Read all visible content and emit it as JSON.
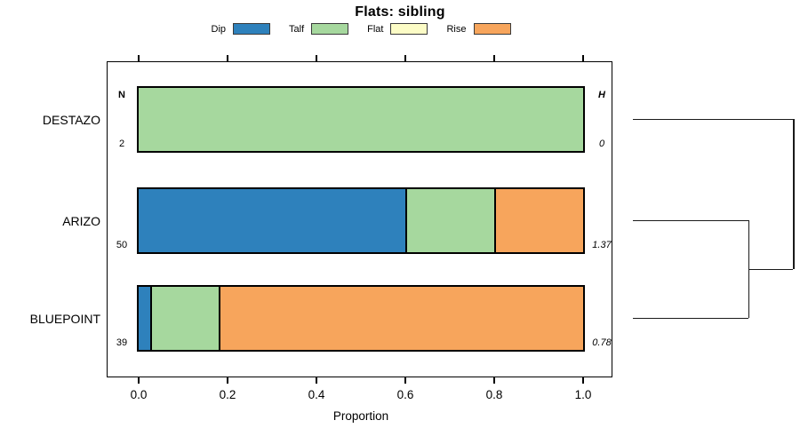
{
  "chart_data": {
    "type": "bar",
    "orientation": "horizontal",
    "stacked": true,
    "title": "Flats: sibling",
    "xlabel": "Proportion",
    "xlim": [
      0,
      1
    ],
    "xticks": [
      "0.0",
      "0.2",
      "0.4",
      "0.6",
      "0.8",
      "1.0"
    ],
    "grid": false,
    "legend_position": "top",
    "categories": [
      "DESTAZO",
      "ARIZO",
      "BLUEPOINT"
    ],
    "left_column": {
      "header": "N",
      "values": [
        "2",
        "50",
        "39"
      ]
    },
    "right_column": {
      "header": "H",
      "values": [
        "0",
        "1.37",
        "0.78"
      ]
    },
    "series": [
      {
        "name": "Dip",
        "color": "#2E81BC",
        "values": [
          0,
          0.6,
          0.0256
        ]
      },
      {
        "name": "Talf",
        "color": "#A6D89E",
        "values": [
          1.0,
          0.2,
          0.1538
        ]
      },
      {
        "name": "Flat",
        "color": "#FCFCC6",
        "values": [
          0,
          0,
          0
        ]
      },
      {
        "name": "Rise",
        "color": "#F7A55C",
        "values": [
          0,
          0.2,
          0.8206
        ]
      }
    ],
    "dendrogram": {
      "joins": [
        {
          "members": [
            "ARIZO",
            "BLUEPOINT"
          ],
          "height": 0.722
        },
        {
          "members": [
            "join0",
            "DESTAZO"
          ],
          "height": 1.0
        }
      ]
    }
  }
}
